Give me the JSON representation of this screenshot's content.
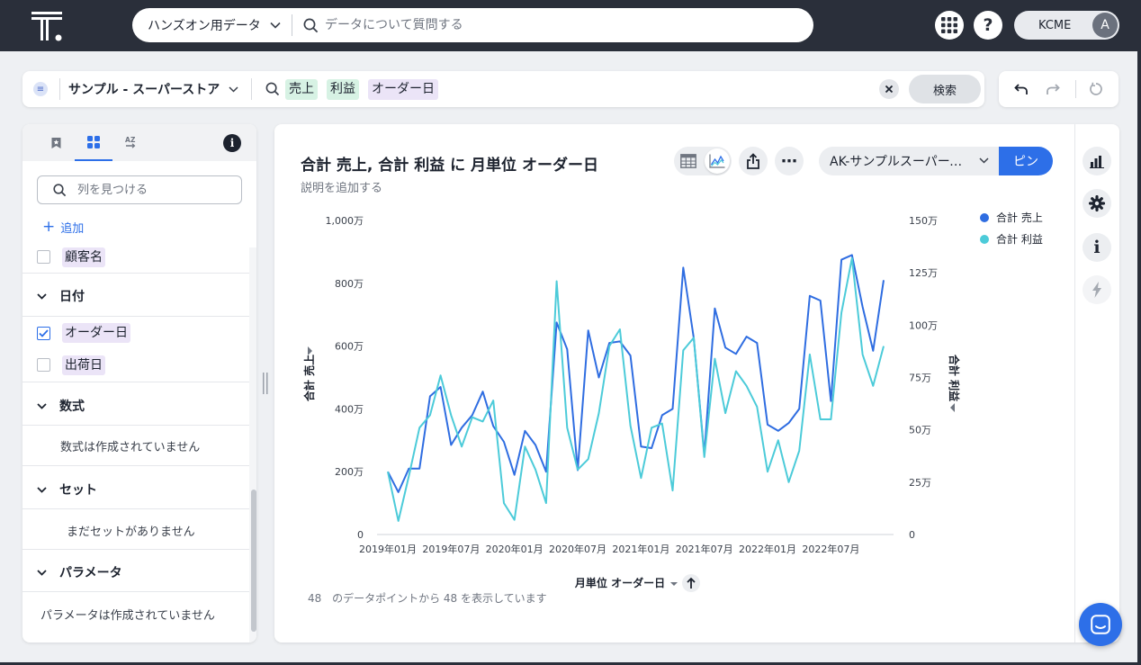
{
  "colors": {
    "accent": "#2d6fe8",
    "nav_bg": "#2a2f3a",
    "series_sales": "#2f6de1",
    "series_profit": "#4ccbd9"
  },
  "top_nav": {
    "logo_icon": "thoughtspot-logo-icon",
    "data_source_label": "ハンズオン用データ",
    "search_placeholder": "データについて質問する",
    "org_label": "KCME",
    "avatar_initial": "A"
  },
  "search_bar": {
    "source_label": "サンプル - スーパーストア",
    "tokens": [
      {
        "label": "売上",
        "kind": "measure"
      },
      {
        "label": "利益",
        "kind": "measure"
      },
      {
        "label": "オーダー日",
        "kind": "attribute"
      }
    ],
    "go_label": "検索"
  },
  "left_panel": {
    "tabs": [
      {
        "icon": "bookmark-icon"
      },
      {
        "icon": "grid-icon"
      },
      {
        "icon": "az-sort-icon"
      }
    ],
    "info_glyph": "i",
    "search_placeholder": "列を見つける",
    "add_label": "追加",
    "columns_top": [
      {
        "label": "顧客名",
        "checked": false
      }
    ],
    "date_group": {
      "label": "日付",
      "columns": [
        {
          "label": "オーダー日",
          "checked": true
        },
        {
          "label": "出荷日",
          "checked": false
        }
      ]
    },
    "formula_group": {
      "label": "数式",
      "empty": "数式は作成されていません"
    },
    "set_group": {
      "label": "セット",
      "empty": "まだセットがありません"
    },
    "param_group": {
      "label": "パラメータ",
      "empty": "パラメータは作成されていません"
    }
  },
  "answer": {
    "title": "合計 売上, 合計 利益 に 月単位 オーダー日",
    "description_placeholder": "説明を追加する",
    "liveboard_label": "AK-サンプルスーパーストア",
    "pin_label": "ピン",
    "more_glyph": "⋯",
    "rail_info_glyph": "i",
    "footnote_count": "48",
    "footnote_text": "のデータポイントから 48 を表示しています"
  },
  "chart_data": {
    "type": "line",
    "title": "合計 売上, 合計 利益 に 月単位 オーダー日",
    "xlabel": "月単位 オーダー日",
    "ylabel_left": "合計 売上",
    "ylabel_right": "合計 利益",
    "ylim_left": [
      0,
      10000000
    ],
    "ylim_right": [
      0,
      1500000
    ],
    "y_ticks_left": [
      "0",
      "200万",
      "400万",
      "600万",
      "800万",
      "1,000万"
    ],
    "y_ticks_right": [
      "0",
      "25万",
      "50万",
      "75万",
      "100万",
      "125万",
      "150万"
    ],
    "x_ticks": [
      "2019年01月",
      "2019年07月",
      "2020年01月",
      "2020年07月",
      "2021年01月",
      "2021年07月",
      "2022年01月",
      "2022年07月"
    ],
    "legend_position": "top-right",
    "grid": false,
    "x": [
      "2019-01",
      "2019-02",
      "2019-03",
      "2019-04",
      "2019-05",
      "2019-06",
      "2019-07",
      "2019-08",
      "2019-09",
      "2019-10",
      "2019-11",
      "2019-12",
      "2020-01",
      "2020-02",
      "2020-03",
      "2020-04",
      "2020-05",
      "2020-06",
      "2020-07",
      "2020-08",
      "2020-09",
      "2020-10",
      "2020-11",
      "2020-12",
      "2021-01",
      "2021-02",
      "2021-03",
      "2021-04",
      "2021-05",
      "2021-06",
      "2021-07",
      "2021-08",
      "2021-09",
      "2021-10",
      "2021-11",
      "2021-12",
      "2022-01",
      "2022-02",
      "2022-03",
      "2022-04",
      "2022-05",
      "2022-06",
      "2022-07",
      "2022-08",
      "2022-09",
      "2022-10",
      "2022-11",
      "2022-12"
    ],
    "series": [
      {
        "name": "合計 売上",
        "axis": "left",
        "values": [
          2000000,
          1350000,
          2100000,
          2100000,
          4400000,
          4700000,
          2850000,
          3400000,
          3800000,
          4550000,
          3450000,
          2950000,
          1900000,
          3300000,
          2850000,
          2000000,
          6750000,
          5900000,
          2050000,
          6500000,
          5000000,
          6100000,
          6150000,
          5700000,
          2800000,
          2750000,
          3800000,
          4000000,
          8500000,
          6250000,
          2550000,
          7200000,
          5950000,
          5750000,
          6300000,
          6100000,
          3500000,
          3300000,
          3550000,
          4000000,
          7600000,
          7450000,
          4250000,
          8750000,
          8900000,
          7250000,
          5850000,
          8100000
        ]
      },
      {
        "name": "合計 利益",
        "axis": "right",
        "values": [
          300000,
          65000,
          280000,
          510000,
          570000,
          760000,
          570000,
          420000,
          560000,
          540000,
          640000,
          150000,
          70000,
          420000,
          310000,
          150000,
          1210000,
          510000,
          310000,
          360000,
          580000,
          900000,
          980000,
          520000,
          270000,
          510000,
          530000,
          210000,
          880000,
          940000,
          370000,
          840000,
          580000,
          780000,
          710000,
          610000,
          300000,
          450000,
          250000,
          400000,
          860000,
          550000,
          550000,
          1060000,
          1320000,
          860000,
          710000,
          900000
        ]
      }
    ]
  }
}
